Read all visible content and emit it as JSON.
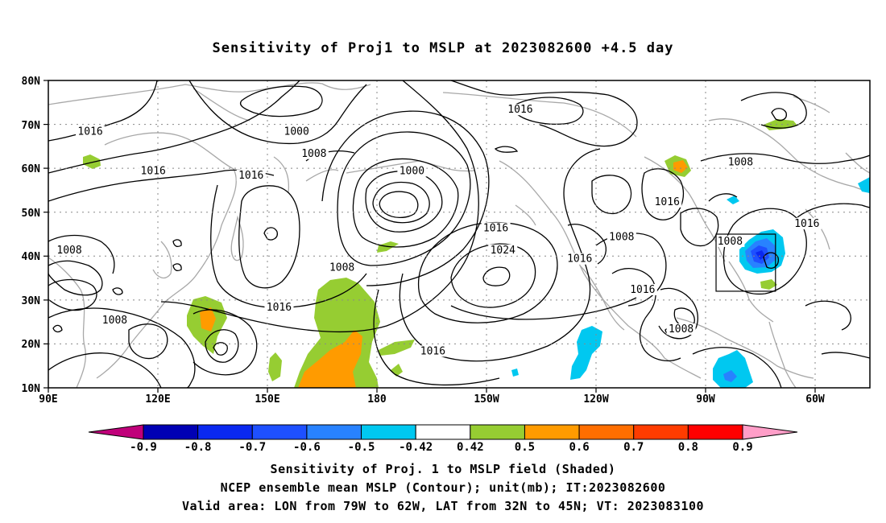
{
  "title": "Sensitivity of Proj1 to MSLP at 2023082600 +4.5 day",
  "lat_labels": [
    "80N",
    "70N",
    "60N",
    "50N",
    "40N",
    "30N",
    "20N",
    "10N"
  ],
  "lon_labels": [
    "90E",
    "120E",
    "150E",
    "180",
    "150W",
    "120W",
    "90W",
    "60W"
  ],
  "contour_labels": [
    {
      "text": "1016",
      "lon": 102,
      "lat": 68
    },
    {
      "text": "1000",
      "lon": 161,
      "lat": 68
    },
    {
      "text": "1008",
      "lon": 166,
      "lat": 63
    },
    {
      "text": "1016",
      "lon": 120,
      "lat": 59
    },
    {
      "text": "1016",
      "lon": 148,
      "lat": 58
    },
    {
      "text": "1000",
      "lon": -166,
      "lat": 59
    },
    {
      "text": "1016",
      "lon": -135,
      "lat": 73
    },
    {
      "text": "1008",
      "lon": -72,
      "lat": 61
    },
    {
      "text": "1016",
      "lon": -93,
      "lat": 52
    },
    {
      "text": "1016",
      "lon": -53,
      "lat": 47
    },
    {
      "text": "1016",
      "lon": -142,
      "lat": 46
    },
    {
      "text": "1008",
      "lon": 96,
      "lat": 41
    },
    {
      "text": "1008",
      "lon": -106,
      "lat": 44
    },
    {
      "text": "1024",
      "lon": -140,
      "lat": 41
    },
    {
      "text": "1016",
      "lon": -118,
      "lat": 39
    },
    {
      "text": "1008",
      "lon": -75,
      "lat": 43
    },
    {
      "text": "1008",
      "lon": 174,
      "lat": 37
    },
    {
      "text": "1016",
      "lon": 156,
      "lat": 28
    },
    {
      "text": "1016",
      "lon": -100,
      "lat": 32
    },
    {
      "text": "1008",
      "lon": 109,
      "lat": 25
    },
    {
      "text": "1008",
      "lon": -89,
      "lat": 23
    },
    {
      "text": "1016",
      "lon": -160,
      "lat": 18
    }
  ],
  "colorbar": {
    "labels": [
      "-0.9",
      "-0.8",
      "-0.7",
      "-0.6",
      "-0.5",
      "-0.42",
      "0.42",
      "0.5",
      "0.6",
      "0.7",
      "0.8",
      "0.9"
    ],
    "colors": [
      "#0000b4",
      "#0a28f0",
      "#1e50ff",
      "#2882ff",
      "#00c8f0",
      "#ffffff",
      "#96cd32",
      "#ff9b00",
      "#ff6e00",
      "#ff3c00",
      "#ff0000"
    ],
    "low_color": "#c0007a",
    "high_color": "#ff9ec8"
  },
  "shaded": [
    {
      "level": "0.5",
      "color": "#96cd32",
      "lon": 100,
      "lat": 62
    },
    {
      "level": "0.5",
      "color": "#96cd32",
      "lon": -67,
      "lat": 71
    },
    {
      "level": "0.6",
      "color": "#ff9b00",
      "lon": -91,
      "lat": 60
    },
    {
      "level": "0.5",
      "color": "#96cd32",
      "lon": 135,
      "lat": 23
    },
    {
      "level": "0.6",
      "color": "#ff9b00",
      "lon": 134,
      "lat": 24
    },
    {
      "level": "0.5",
      "color": "#96cd32",
      "lon": 178,
      "lat": 20
    },
    {
      "level": "0.6",
      "color": "#ff9b00",
      "lon": 175,
      "lat": 14
    },
    {
      "level": "-0.5",
      "color": "#00c8f0",
      "lon": -120,
      "lat": 17
    },
    {
      "level": "-0.5",
      "color": "#00c8f0",
      "lon": -74,
      "lat": 14
    },
    {
      "level": "-0.7",
      "color": "#1e50ff",
      "lon": -68,
      "lat": 41
    }
  ],
  "valid_area": {
    "lon_min": -79,
    "lon_max": -62,
    "lat_min": 32,
    "lat_max": 45
  },
  "caption_lines": [
    "Sensitivity of Proj. 1 to MSLP field (Shaded)",
    "NCEP ensemble mean MSLP (Contour); unit(mb); IT:2023082600",
    "Valid area: LON from 79W to 62W, LAT from 32N to 45N; VT: 2023083100"
  ]
}
